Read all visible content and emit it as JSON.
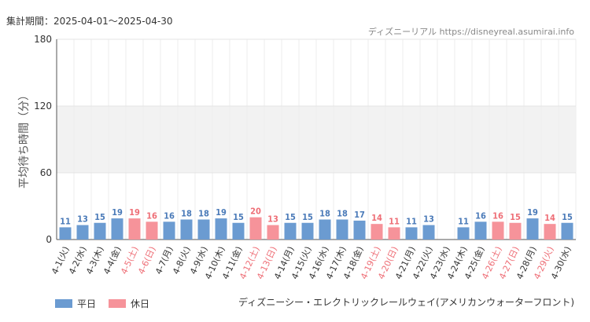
{
  "header": {
    "period": "集計期間：2025-04-01～2025-04-30",
    "credit": "ディズニーリアル https://disneyreal.asumirai.info"
  },
  "footer": {
    "attraction": "ディズニーシー・エレクトリックレールウェイ(アメリカンウォーターフロント)"
  },
  "colors": {
    "weekday": "#6b9bd1",
    "holiday": "#f6939a",
    "weekday_label": "#4a7ab8",
    "holiday_label": "#ee6e76",
    "band": "#f2f2f2",
    "grid": "#e4e4e4"
  },
  "chart_data": {
    "type": "bar",
    "ylabel": "平均待ち時間（分）",
    "ylim": [
      0,
      180
    ],
    "yticks": [
      0,
      60,
      120,
      180
    ],
    "band": [
      60,
      120
    ],
    "legend": [
      {
        "key": "weekday",
        "label": "平日"
      },
      {
        "key": "holiday",
        "label": "休日"
      }
    ],
    "categories": [
      "4-1(火)",
      "4-2(水)",
      "4-3(木)",
      "4-4(金)",
      "4-5(土)",
      "4-6(日)",
      "4-7(月)",
      "4-8(火)",
      "4-9(水)",
      "4-10(木)",
      "4-11(金)",
      "4-12(土)",
      "4-13(日)",
      "4-14(月)",
      "4-15(火)",
      "4-16(水)",
      "4-17(木)",
      "4-18(金)",
      "4-19(土)",
      "4-20(日)",
      "4-21(月)",
      "4-22(火)",
      "4-23(水)",
      "4-24(木)",
      "4-25(金)",
      "4-26(土)",
      "4-27(日)",
      "4-28(月)",
      "4-29(火)",
      "4-30(水)"
    ],
    "values": [
      11,
      13,
      15,
      19,
      19,
      16,
      16,
      18,
      18,
      19,
      15,
      20,
      13,
      15,
      15,
      18,
      18,
      17,
      14,
      11,
      11,
      13,
      null,
      11,
      16,
      16,
      15,
      19,
      14,
      15
    ],
    "day_type": [
      "weekday",
      "weekday",
      "weekday",
      "weekday",
      "holiday",
      "holiday",
      "weekday",
      "weekday",
      "weekday",
      "weekday",
      "weekday",
      "holiday",
      "holiday",
      "weekday",
      "weekday",
      "weekday",
      "weekday",
      "weekday",
      "holiday",
      "holiday",
      "weekday",
      "weekday",
      "weekday",
      "weekday",
      "weekday",
      "holiday",
      "holiday",
      "weekday",
      "holiday",
      "weekday"
    ]
  }
}
